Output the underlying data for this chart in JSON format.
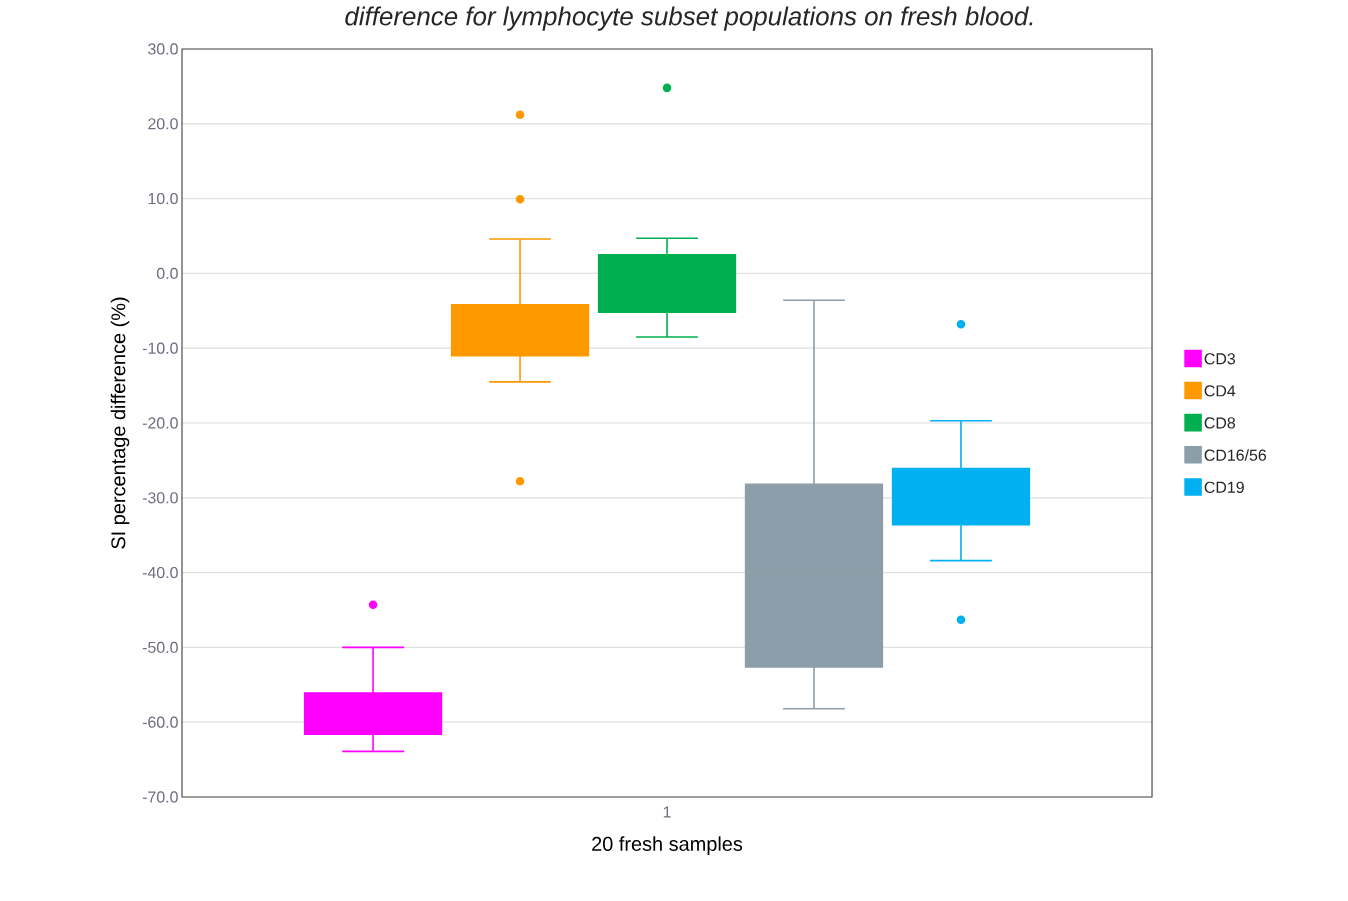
{
  "chart_data": {
    "type": "box",
    "title": "difference for lymphocyte subset populations on fresh blood.",
    "xlabel": "20 fresh samples",
    "ylabel": "SI percentage difference (%)",
    "categories": [
      "1"
    ],
    "ylim": [
      -70,
      30
    ],
    "yticks": [
      {
        "value": -70,
        "label": "-70.0"
      },
      {
        "value": -60,
        "label": "-60.0"
      },
      {
        "value": -50,
        "label": "-50.0"
      },
      {
        "value": -40,
        "label": "-40.0"
      },
      {
        "value": -30,
        "label": "-30.0"
      },
      {
        "value": -20,
        "label": "-20.0"
      },
      {
        "value": -10,
        "label": "-10.0"
      },
      {
        "value": 0,
        "label": "0.0"
      },
      {
        "value": 10,
        "label": "10.0"
      },
      {
        "value": 20,
        "label": "20.0"
      },
      {
        "value": 30,
        "label": "30.0"
      }
    ],
    "grid": "y",
    "legend": "right",
    "series": [
      {
        "name": "CD3",
        "color": "#ff00ff",
        "boxes": [
          {
            "low": -63.9,
            "q1": -61.6,
            "median": -58.9,
            "q3": -56.1,
            "high": -50.0,
            "outliers": [
              -44.3
            ]
          }
        ]
      },
      {
        "name": "CD4",
        "color": "#ff9900",
        "boxes": [
          {
            "low": -14.5,
            "q1": -11.0,
            "median": -7.6,
            "q3": -4.2,
            "high": 4.6,
            "outliers": [
              21.2,
              9.9,
              -27.8
            ]
          }
        ]
      },
      {
        "name": "CD8",
        "color": "#00b050",
        "boxes": [
          {
            "low": -8.5,
            "q1": -5.2,
            "median": -1.4,
            "q3": 2.5,
            "high": 4.7,
            "outliers": [
              24.8
            ]
          }
        ]
      },
      {
        "name": "CD16/56",
        "color": "#8c9ea9",
        "boxes": [
          {
            "low": -58.2,
            "q1": -52.6,
            "median": -40.4,
            "q3": -28.2,
            "high": -3.6
          }
        ]
      },
      {
        "name": "CD19",
        "color": "#00b0f0",
        "boxes": [
          {
            "low": -38.4,
            "q1": -33.6,
            "median": -29.9,
            "q3": -26.1,
            "high": -19.7,
            "outliers": [
              -6.8,
              -46.3
            ]
          }
        ]
      }
    ]
  }
}
